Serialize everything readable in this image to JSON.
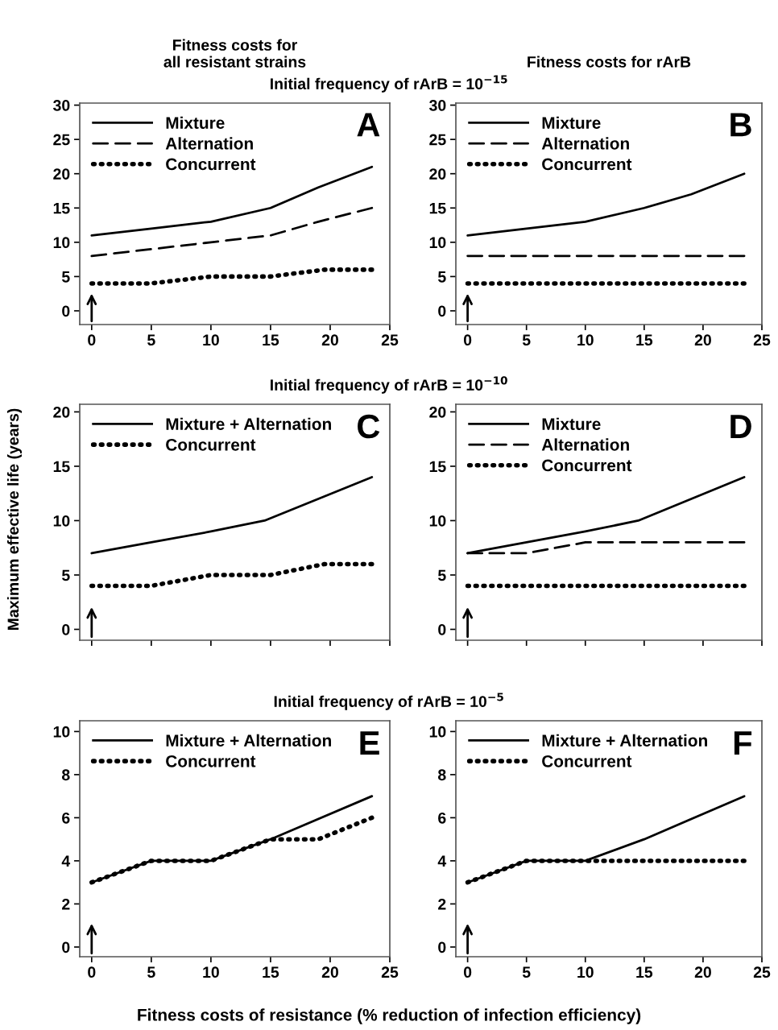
{
  "chart_data": [
    {
      "type": "line",
      "title": "Fitness costs for\nall resistant strains",
      "subtitle": "Initial frequency of rArB = 10$^{−15}$",
      "annotations": [
        "A"
      ],
      "xlim": [
        -1,
        25
      ],
      "xticks": [
        0,
        5,
        10,
        15,
        20,
        25
      ],
      "ylim": [
        -2,
        30.3
      ],
      "yticks": [
        0,
        5,
        10,
        15,
        20,
        25,
        30
      ],
      "legend": "top left",
      "grid": false,
      "marker": "none",
      "series": [
        {
          "name": "Mixture",
          "color": "#000000",
          "line_style": "solid",
          "x": [
            0,
            5,
            10,
            15,
            19,
            23.5
          ],
          "values": [
            11,
            12,
            13,
            15,
            18,
            21
          ]
        },
        {
          "name": "Alternation",
          "color": "#000000",
          "line_style": "dashed",
          "x": [
            0,
            5,
            10,
            15,
            19,
            23.5
          ],
          "values": [
            8,
            9,
            10,
            11,
            13,
            15
          ]
        },
        {
          "name": "Concurrent",
          "color": "#000000",
          "line_style": "dotted",
          "x": [
            0,
            5,
            10,
            15,
            19.5,
            23.5
          ],
          "values": [
            4,
            4,
            5,
            5,
            6,
            6
          ]
        }
      ]
    },
    {
      "type": "line",
      "title": "Fitness costs for rArB",
      "annotations": [
        "B"
      ],
      "xlim": [
        -1,
        25
      ],
      "xticks": [
        0,
        5,
        10,
        15,
        20,
        25
      ],
      "ylim": [
        -2,
        30.3
      ],
      "yticks": [
        0,
        5,
        10,
        15,
        20,
        25,
        30
      ],
      "legend": "top left",
      "grid": false,
      "marker": "none",
      "series": [
        {
          "name": "Mixture",
          "color": "#000000",
          "line_style": "solid",
          "x": [
            0,
            5,
            10,
            15,
            19,
            23.5
          ],
          "values": [
            11,
            12,
            13,
            15,
            17,
            20
          ]
        },
        {
          "name": "Alternation",
          "color": "#000000",
          "line_style": "dashed",
          "x": [
            0,
            23.5
          ],
          "values": [
            8,
            8
          ]
        },
        {
          "name": "Concurrent",
          "color": "#000000",
          "line_style": "dotted",
          "x": [
            0,
            23.5
          ],
          "values": [
            4,
            4
          ]
        }
      ]
    },
    {
      "type": "line",
      "subtitle": "Initial frequency of rArB = 10$^{−10}$",
      "ylabel": "Maximum effective life (years)",
      "annotations": [
        "C"
      ],
      "tick_labels": "y",
      "xlim": [
        -1,
        25
      ],
      "xticks": [
        0,
        5,
        10,
        15,
        20,
        25
      ],
      "ylim": [
        -1,
        20.7
      ],
      "yticks": [
        0,
        5,
        10,
        15,
        20
      ],
      "legend": "top left",
      "grid": false,
      "marker": "none",
      "series": [
        {
          "name": "Mixture + Alternation",
          "color": "#000000",
          "line_style": "solid",
          "x": [
            0,
            5,
            10,
            14.5,
            19,
            23.5
          ],
          "values": [
            7,
            8,
            9,
            10,
            12,
            14
          ]
        },
        {
          "name": "Concurrent",
          "color": "#000000",
          "line_style": "dotted",
          "x": [
            0,
            5,
            10,
            15,
            19.5,
            23.5
          ],
          "values": [
            4,
            4,
            5,
            5,
            6,
            6
          ]
        }
      ]
    },
    {
      "type": "line",
      "annotations": [
        "D"
      ],
      "tick_labels": "y",
      "xlim": [
        -1,
        25
      ],
      "xticks": [
        0,
        5,
        10,
        15,
        20,
        25
      ],
      "ylim": [
        -1,
        20.7
      ],
      "yticks": [
        0,
        5,
        10,
        15,
        20
      ],
      "legend": "top left",
      "grid": false,
      "marker": "none",
      "series": [
        {
          "name": "Mixture",
          "color": "#000000",
          "line_style": "solid",
          "x": [
            0,
            5,
            10,
            14.5,
            19,
            23.5
          ],
          "values": [
            7,
            8,
            9,
            10,
            12,
            14
          ]
        },
        {
          "name": "Alternation",
          "color": "#000000",
          "line_style": "dashed",
          "x": [
            0,
            5,
            10,
            23.5
          ],
          "values": [
            7,
            7,
            8,
            8
          ]
        },
        {
          "name": "Concurrent",
          "color": "#000000",
          "line_style": "dotted",
          "x": [
            0,
            23.5
          ],
          "values": [
            4,
            4
          ]
        }
      ]
    },
    {
      "type": "line",
      "subtitle": "Initial frequency of rArB = 10$^{−5}$",
      "xlabel": "Fitness costs of resistance (% reduction of infection efficiency)",
      "annotations": [
        "E"
      ],
      "xlim": [
        -1,
        25
      ],
      "xticks": [
        0,
        5,
        10,
        15,
        20,
        25
      ],
      "ylim": [
        -0.45,
        10.5
      ],
      "yticks": [
        0,
        2,
        4,
        6,
        8,
        10
      ],
      "legend": "top left",
      "grid": false,
      "marker": "none",
      "series": [
        {
          "name": "Mixture + Alternation",
          "color": "#000000",
          "line_style": "solid",
          "x": [
            0,
            5,
            10,
            15,
            23.5
          ],
          "values": [
            3,
            4,
            4,
            5,
            7
          ]
        },
        {
          "name": "Concurrent",
          "color": "#000000",
          "line_style": "dotted",
          "x": [
            0,
            5,
            10,
            15,
            19,
            23.5
          ],
          "values": [
            3,
            4,
            4,
            5,
            5,
            6
          ]
        }
      ]
    },
    {
      "type": "line",
      "annotations": [
        "F"
      ],
      "xlim": [
        -1,
        25
      ],
      "xticks": [
        0,
        5,
        10,
        15,
        20,
        25
      ],
      "ylim": [
        -0.45,
        10.5
      ],
      "yticks": [
        0,
        2,
        4,
        6,
        8,
        10
      ],
      "legend": "top left",
      "grid": false,
      "marker": "none",
      "series": [
        {
          "name": "Mixture + Alternation",
          "color": "#000000",
          "line_style": "solid",
          "x": [
            0,
            5,
            10,
            15,
            23.5
          ],
          "values": [
            3,
            4,
            4,
            5,
            7
          ]
        },
        {
          "name": "Concurrent",
          "color": "#000000",
          "line_style": "dotted",
          "x": [
            0,
            5,
            23.5
          ],
          "values": [
            3,
            4,
            4
          ]
        }
      ]
    }
  ]
}
